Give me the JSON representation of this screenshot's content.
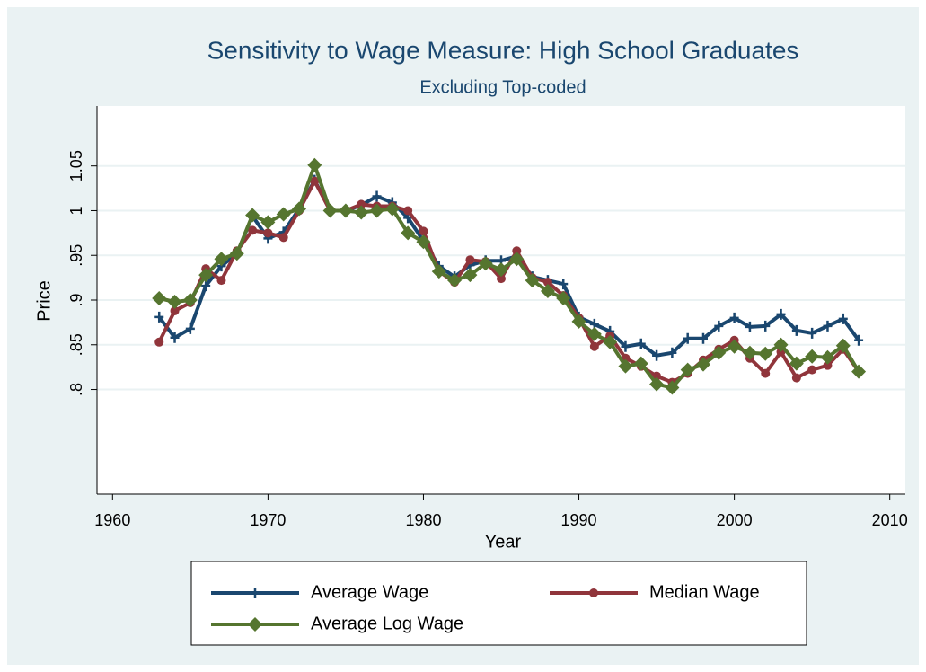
{
  "chart_data": {
    "type": "line",
    "title": "Sensitivity to Wage Measure: High School Graduates",
    "subtitle": "Excluding Top-coded",
    "x_label": "Year",
    "y_label": "Price",
    "x": [
      1963,
      1964,
      1965,
      1966,
      1967,
      1968,
      1969,
      1970,
      1971,
      1972,
      1973,
      1974,
      1975,
      1976,
      1977,
      1978,
      1979,
      1980,
      1981,
      1982,
      1983,
      1984,
      1985,
      1986,
      1987,
      1988,
      1989,
      1990,
      1991,
      1992,
      1993,
      1994,
      1995,
      1996,
      1997,
      1998,
      1999,
      2000,
      2001,
      2002,
      2003,
      2004,
      2005,
      2006,
      2007,
      2008
    ],
    "series": [
      {
        "name": "Average Wage",
        "color": "#1a476f",
        "marker": "plus",
        "values": [
          0.881,
          0.858,
          0.868,
          0.916,
          0.938,
          0.952,
          0.994,
          0.969,
          0.976,
          1.002,
          1.034,
          1.0,
          1.0,
          1.006,
          1.016,
          1.009,
          0.992,
          0.966,
          0.938,
          0.926,
          0.939,
          0.944,
          0.944,
          0.949,
          0.926,
          0.922,
          0.918,
          0.881,
          0.873,
          0.865,
          0.848,
          0.851,
          0.838,
          0.841,
          0.857,
          0.857,
          0.871,
          0.88,
          0.87,
          0.871,
          0.884,
          0.866,
          0.863,
          0.871,
          0.879,
          0.855
        ]
      },
      {
        "name": "Median Wage",
        "color": "#90353b",
        "marker": "circle",
        "values": [
          0.853,
          0.888,
          0.897,
          0.935,
          0.922,
          0.955,
          0.978,
          0.975,
          0.97,
          1.0,
          1.033,
          1.0,
          1.0,
          1.007,
          1.005,
          1.005,
          1.0,
          0.977,
          0.932,
          0.92,
          0.945,
          0.943,
          0.924,
          0.955,
          0.925,
          0.92,
          0.905,
          0.88,
          0.848,
          0.86,
          0.835,
          0.826,
          0.815,
          0.808,
          0.818,
          0.833,
          0.845,
          0.855,
          0.835,
          0.818,
          0.842,
          0.813,
          0.822,
          0.827,
          0.845,
          0.82
        ]
      },
      {
        "name": "Average Log Wage",
        "color": "#55752f",
        "marker": "diamond",
        "values": [
          0.902,
          0.898,
          0.9,
          0.928,
          0.946,
          0.952,
          0.995,
          0.987,
          0.996,
          1.002,
          1.051,
          1.0,
          1.0,
          0.998,
          1.0,
          1.002,
          0.975,
          0.965,
          0.932,
          0.922,
          0.928,
          0.941,
          0.934,
          0.946,
          0.922,
          0.91,
          0.902,
          0.876,
          0.862,
          0.853,
          0.826,
          0.829,
          0.806,
          0.802,
          0.822,
          0.828,
          0.841,
          0.848,
          0.841,
          0.84,
          0.85,
          0.829,
          0.837,
          0.836,
          0.849,
          0.82
        ]
      }
    ],
    "xlim": [
      1959,
      2011
    ],
    "ylim": [
      0.683,
      1.117
    ],
    "xticks": [
      1960,
      1970,
      1980,
      1990,
      2000,
      2010
    ],
    "yticks": [
      {
        "value": 0.8,
        "label": ".8"
      },
      {
        "value": 0.85,
        "label": ".85"
      },
      {
        "value": 0.9,
        "label": ".9"
      },
      {
        "value": 0.95,
        "label": ".95"
      },
      1,
      1.05
    ],
    "grid": true,
    "legend": "bottom"
  }
}
